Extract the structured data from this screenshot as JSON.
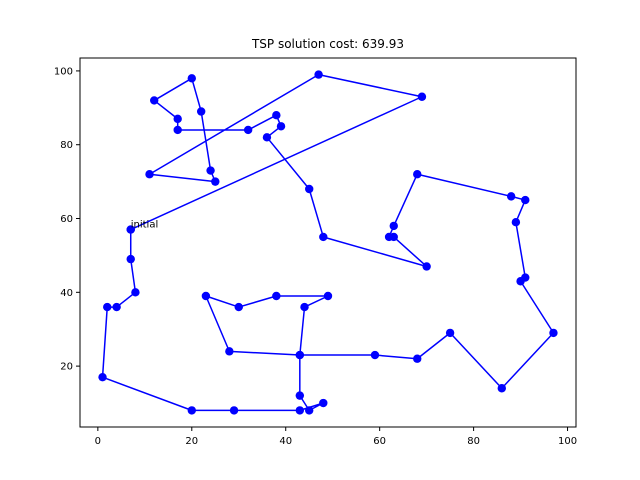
{
  "chart_data": {
    "type": "line",
    "title": "TSP solution cost: 639.93",
    "xlabel": "",
    "ylabel": "",
    "xlim": [
      -3.8,
      101.8
    ],
    "ylim": [
      3.5,
      103.5
    ],
    "xticks": [
      0,
      20,
      40,
      60,
      80,
      100
    ],
    "yticks": [
      20,
      40,
      60,
      80,
      100
    ],
    "grid": false,
    "line_color": "#0000ff",
    "marker": "circle",
    "annotation": {
      "text": "initial",
      "x": 7,
      "y": 57
    },
    "tour": [
      [
        7,
        57
      ],
      [
        69,
        93
      ],
      [
        47,
        99
      ],
      [
        11,
        72
      ],
      [
        25,
        70
      ],
      [
        24,
        73
      ],
      [
        22,
        89
      ],
      [
        20,
        98
      ],
      [
        12,
        92
      ],
      [
        17,
        87
      ],
      [
        17,
        84
      ],
      [
        32,
        84
      ],
      [
        38,
        88
      ],
      [
        39,
        85
      ],
      [
        36,
        82
      ],
      [
        45,
        68
      ],
      [
        48,
        55
      ],
      [
        70,
        47
      ],
      [
        63,
        55
      ],
      [
        62,
        55
      ],
      [
        63,
        58
      ],
      [
        68,
        72
      ],
      [
        88,
        66
      ],
      [
        91,
        65
      ],
      [
        89,
        59
      ],
      [
        91,
        44
      ],
      [
        90,
        43
      ],
      [
        97,
        29
      ],
      [
        86,
        14
      ],
      [
        75,
        29
      ],
      [
        68,
        22
      ],
      [
        59,
        23
      ],
      [
        43,
        23
      ],
      [
        44,
        36
      ],
      [
        49,
        39
      ],
      [
        38,
        39
      ],
      [
        30,
        36
      ],
      [
        23,
        39
      ],
      [
        28,
        24
      ],
      [
        43,
        23
      ],
      [
        43,
        12
      ],
      [
        45,
        8
      ],
      [
        48,
        10
      ],
      [
        43,
        8
      ],
      [
        29,
        8
      ],
      [
        20,
        8
      ],
      [
        1,
        17
      ],
      [
        2,
        36
      ],
      [
        4,
        36
      ],
      [
        8,
        40
      ],
      [
        7,
        49
      ],
      [
        7,
        57
      ]
    ]
  }
}
